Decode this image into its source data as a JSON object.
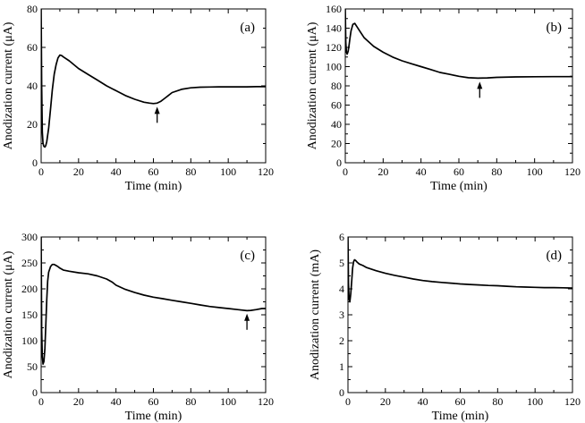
{
  "chart_data": [
    {
      "type": "line",
      "panel_label": "(a)",
      "xlabel": "Time (min)",
      "ylabel": "Anodization current (μA)",
      "xlim": [
        0,
        120
      ],
      "ylim": [
        0,
        80
      ],
      "xticks": [
        0,
        20,
        40,
        60,
        80,
        100,
        120
      ],
      "yticks": [
        0,
        20,
        40,
        60,
        80
      ],
      "grid": false,
      "arrow_at": {
        "x": 62,
        "y": 31
      },
      "series": [
        {
          "x": [
            0,
            0.3,
            0.6,
            1,
            1.5,
            2,
            2.5,
            3,
            4,
            5,
            6,
            7,
            8,
            9,
            10,
            11,
            12,
            15,
            20,
            25,
            30,
            35,
            40,
            45,
            50,
            55,
            58,
            60,
            62,
            64,
            66,
            68,
            70,
            75,
            80,
            85,
            90,
            95,
            100,
            105,
            110,
            115,
            120
          ],
          "y": [
            80,
            40,
            16,
            10,
            8.5,
            8.2,
            9,
            11,
            18,
            28,
            38,
            46,
            51,
            54.5,
            56,
            55.7,
            55,
            53,
            49,
            46,
            43,
            40,
            37.5,
            35,
            33,
            31.5,
            31,
            30.8,
            31,
            32,
            33.5,
            35,
            36.5,
            38.2,
            39,
            39.3,
            39.4,
            39.5,
            39.5,
            39.5,
            39.5,
            39.6,
            39.6
          ]
        }
      ]
    },
    {
      "type": "line",
      "panel_label": "(b)",
      "xlabel": "Time (min)",
      "ylabel": "Anodization current (μA)",
      "xlim": [
        0,
        120
      ],
      "ylim": [
        0,
        160
      ],
      "xticks": [
        0,
        20,
        40,
        60,
        80,
        100,
        120
      ],
      "yticks": [
        0,
        20,
        40,
        60,
        80,
        100,
        120,
        140,
        160
      ],
      "grid": false,
      "arrow_at": {
        "x": 71,
        "y": 88
      },
      "series": [
        {
          "x": [
            0,
            0.3,
            0.6,
            1,
            1.5,
            2,
            2.5,
            3,
            4,
            5,
            6,
            8,
            10,
            15,
            20,
            25,
            30,
            35,
            40,
            45,
            50,
            55,
            60,
            65,
            70,
            75,
            80,
            90,
            100,
            110,
            120
          ],
          "y": [
            160,
            125,
            115,
            113,
            116,
            122,
            130,
            137,
            144,
            145,
            142,
            136,
            130,
            121,
            115,
            110,
            106,
            103,
            100,
            97,
            94,
            92,
            90,
            88.5,
            88,
            88.3,
            88.8,
            89.3,
            89.5,
            89.6,
            89.6
          ]
        }
      ]
    },
    {
      "type": "line",
      "panel_label": "(c)",
      "xlabel": "Time (min)",
      "ylabel": "Anodization current (μA)",
      "xlim": [
        0,
        120
      ],
      "ylim": [
        0,
        300
      ],
      "xticks": [
        0,
        20,
        40,
        60,
        80,
        100,
        120
      ],
      "yticks": [
        0,
        50,
        100,
        150,
        200,
        250,
        300
      ],
      "grid": false,
      "arrow_at": {
        "x": 110,
        "y": 159
      },
      "series": [
        {
          "x": [
            0,
            0.3,
            0.6,
            1,
            1.5,
            2,
            2.5,
            3,
            3.5,
            4,
            5,
            6,
            7,
            8,
            9,
            10,
            12,
            15,
            20,
            25,
            30,
            35,
            38,
            40,
            45,
            50,
            55,
            60,
            65,
            70,
            75,
            80,
            85,
            90,
            95,
            100,
            105,
            110,
            112,
            115,
            118,
            120
          ],
          "y": [
            300,
            120,
            70,
            55,
            60,
            85,
            130,
            180,
            215,
            232,
            243,
            247,
            247,
            245,
            243,
            240,
            236,
            234,
            231,
            229,
            225,
            219,
            213,
            207,
            199,
            193,
            188,
            184,
            181,
            178,
            175,
            172,
            169,
            166,
            164,
            162,
            160,
            158,
            158.5,
            160,
            162,
            162
          ]
        }
      ]
    },
    {
      "type": "line",
      "panel_label": "(d)",
      "xlabel": "Time (min)",
      "ylabel": "Anodization current (mA)",
      "xlim": [
        0,
        120
      ],
      "ylim": [
        0,
        6
      ],
      "xticks": [
        0,
        20,
        40,
        60,
        80,
        100,
        120
      ],
      "yticks": [
        0,
        1,
        2,
        3,
        4,
        5,
        6
      ],
      "grid": false,
      "series": [
        {
          "x": [
            0,
            0.3,
            0.6,
            1,
            1.5,
            2,
            2.5,
            3,
            3.5,
            4,
            5,
            6,
            8,
            10,
            15,
            20,
            25,
            30,
            35,
            40,
            45,
            50,
            55,
            60,
            65,
            70,
            75,
            80,
            85,
            90,
            95,
            100,
            105,
            110,
            115,
            120
          ],
          "y": [
            6,
            4.2,
            3.6,
            3.5,
            3.8,
            4.3,
            4.8,
            5.05,
            5.12,
            5.1,
            5.02,
            4.96,
            4.9,
            4.82,
            4.7,
            4.6,
            4.52,
            4.45,
            4.38,
            4.32,
            4.28,
            4.25,
            4.22,
            4.19,
            4.17,
            4.15,
            4.13,
            4.12,
            4.1,
            4.08,
            4.07,
            4.06,
            4.05,
            4.05,
            4.04,
            4.03
          ]
        }
      ]
    }
  ]
}
